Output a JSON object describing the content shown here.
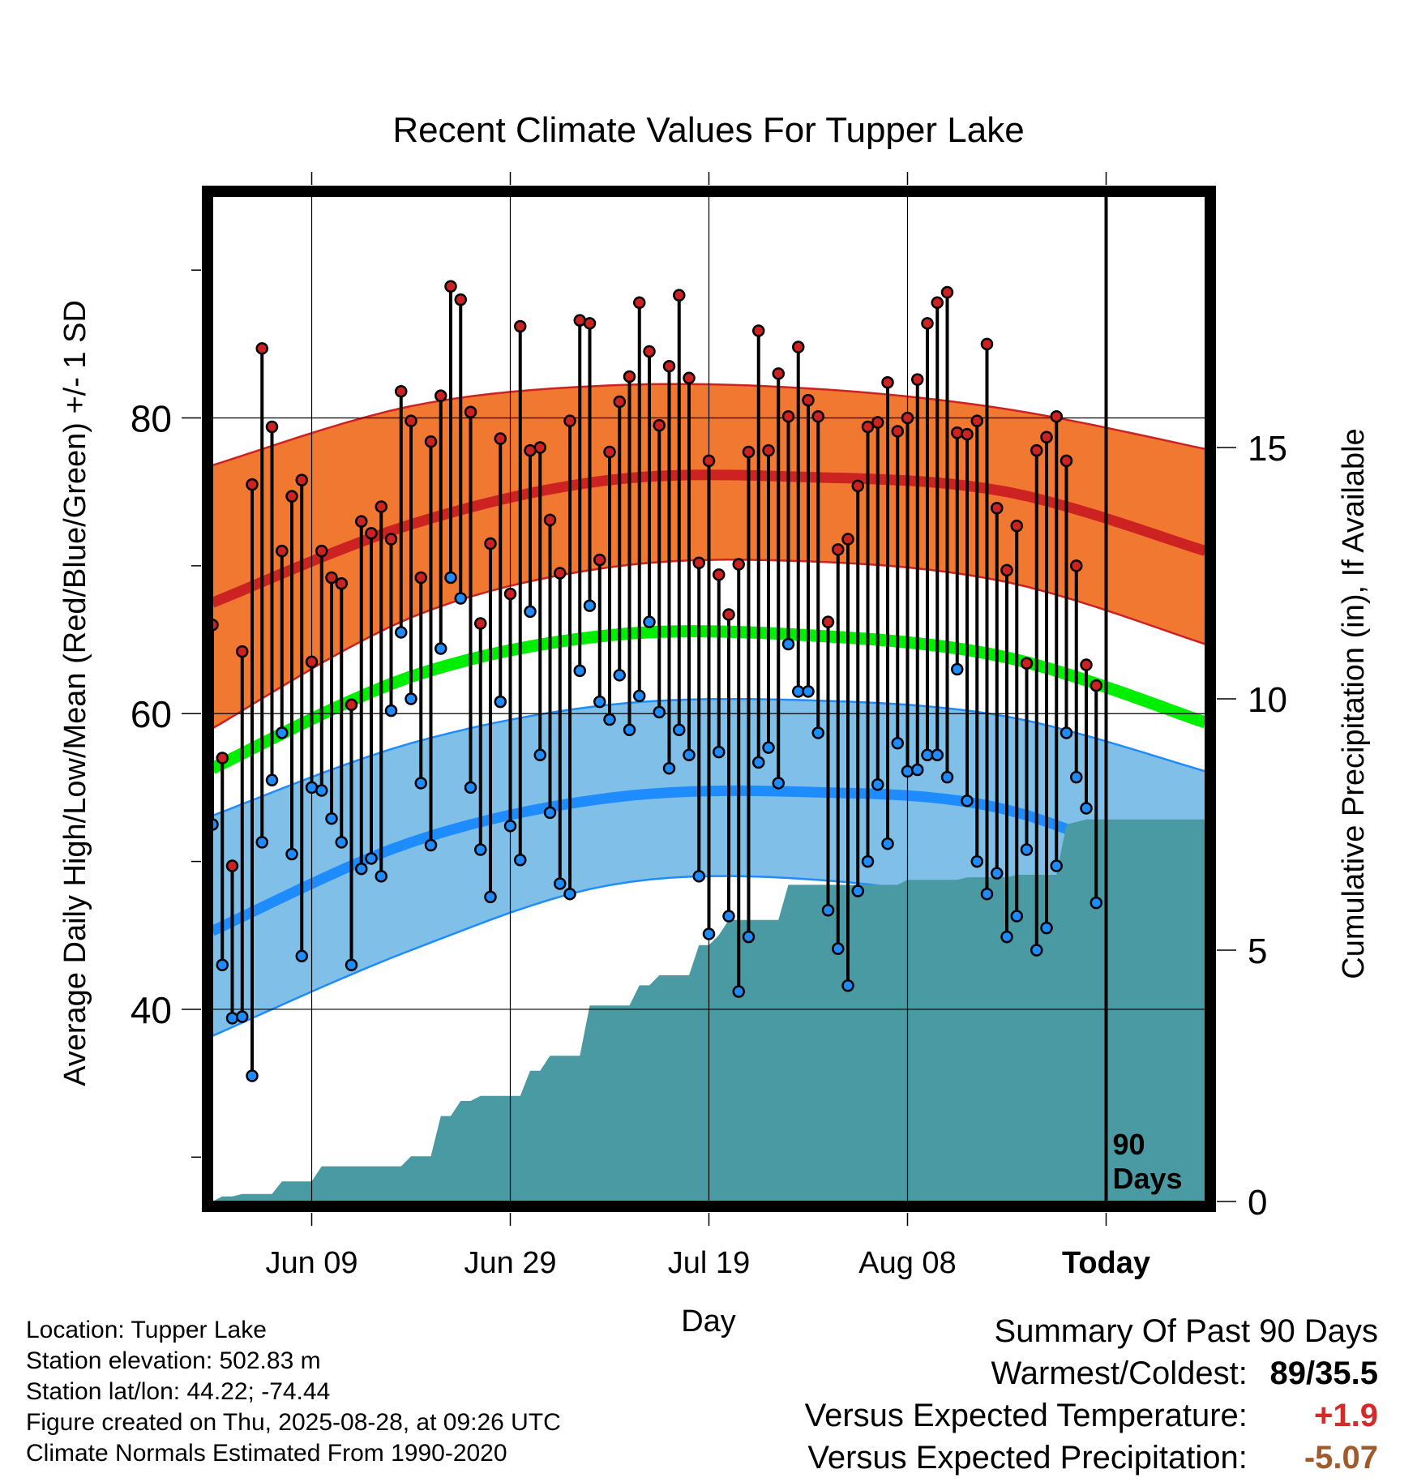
{
  "chart_data": {
    "type": "line",
    "title": "Recent Climate Values For Tupper Lake",
    "xlabel": "Day",
    "ylabel_left": "Average Daily High/Low/Mean (Red/Blue/Green) +/- 1 SD",
    "ylabel_right": "Cumulative Precipitation (in), If Available",
    "x_tick_labels": [
      "Jun 09",
      "Jun 29",
      "Jul 19",
      "Aug 08",
      "Today"
    ],
    "x_tick_days": [
      10,
      30,
      50,
      70,
      90
    ],
    "xlim": [
      0,
      100
    ],
    "ylim_left": [
      27,
      95
    ],
    "ylim_right": [
      0,
      20
    ],
    "y_ticks_left": [
      40,
      60,
      80
    ],
    "y_ticks_right": [
      0,
      5,
      10,
      15
    ],
    "grid": true,
    "today_line": {
      "day": 90,
      "label_lines": [
        "90",
        "Days"
      ]
    },
    "normals": {
      "high_mean": [
        67.5,
        72.8,
        75.8,
        76.0,
        75.0,
        71.0
      ],
      "high_upper": [
        76.8,
        80.8,
        82.2,
        82.0,
        80.6,
        77.9
      ],
      "high_lower": [
        59.0,
        66.5,
        69.9,
        70.3,
        68.9,
        64.7
      ],
      "mean": [
        56.3,
        62.5,
        65.3,
        65.3,
        63.8,
        59.4
      ],
      "low_mean": [
        45.3,
        51.3,
        54.3,
        54.7,
        53.5,
        48.2
      ],
      "low_upper": [
        53.1,
        58.0,
        60.6,
        60.9,
        59.8,
        56.1
      ],
      "low_lower": [
        38.2,
        44.0,
        48.4,
        48.8,
        46.7,
        41.4
      ],
      "days": [
        0,
        20,
        40,
        60,
        80,
        100
      ]
    },
    "series": [
      {
        "name": "High",
        "values": [
          66.0,
          57.0,
          49.7,
          64.2,
          75.5,
          84.7,
          79.4,
          71.0,
          74.7,
          75.8,
          63.5,
          71.0,
          69.2,
          68.8,
          60.6,
          73.0,
          72.2,
          74.0,
          71.8,
          81.8,
          79.8,
          69.2,
          78.4,
          81.5,
          88.9,
          88.0,
          80.4,
          66.1,
          71.5,
          78.6,
          68.1,
          86.2,
          77.8,
          78.0,
          73.1,
          69.5,
          79.8,
          86.6,
          86.4,
          70.4,
          77.7,
          81.1,
          82.8,
          87.8,
          84.5,
          79.5,
          83.5,
          88.3,
          82.7,
          70.2,
          77.1,
          69.4,
          66.7,
          70.1,
          77.7,
          85.9,
          77.8,
          83.0,
          80.1,
          84.8,
          81.2,
          80.1,
          66.2,
          71.1,
          71.8,
          75.4,
          79.4,
          79.7,
          82.4,
          79.1,
          80.0,
          82.6,
          86.4,
          87.8,
          88.5,
          79.0,
          78.9,
          79.8,
          85.0,
          73.9,
          69.7,
          72.7,
          63.4,
          77.8,
          78.7,
          80.1,
          77.1,
          70.0,
          63.3,
          61.9
        ]
      },
      {
        "name": "Low",
        "values": [
          52.5,
          43.0,
          39.4,
          39.5,
          35.5,
          51.3,
          55.5,
          58.7,
          50.5,
          43.6,
          55.0,
          54.8,
          52.9,
          51.3,
          43.0,
          49.5,
          50.2,
          49.0,
          60.2,
          65.5,
          61.0,
          55.3,
          51.1,
          64.4,
          69.2,
          67.8,
          55.0,
          50.8,
          47.6,
          60.8,
          52.4,
          50.1,
          66.9,
          57.2,
          53.3,
          48.5,
          47.8,
          62.9,
          67.3,
          60.8,
          59.6,
          62.6,
          58.9,
          61.2,
          66.2,
          60.1,
          56.3,
          58.9,
          57.2,
          49.0,
          45.1,
          57.4,
          46.3,
          41.2,
          44.9,
          56.7,
          57.7,
          55.3,
          64.7,
          61.5,
          61.5,
          58.7,
          46.7,
          44.1,
          41.6,
          48.0,
          50.0,
          55.2,
          51.2,
          58.0,
          56.1,
          56.2,
          57.2,
          57.2,
          55.7,
          63.0,
          54.1,
          50.0,
          47.8,
          49.2,
          44.9,
          46.3,
          50.8,
          44.0,
          45.5,
          49.7,
          58.7,
          55.7,
          53.6,
          47.2
        ]
      }
    ],
    "precip_cumulative": [
      [
        0,
        0.0
      ],
      [
        1,
        0.1
      ],
      [
        2,
        0.1
      ],
      [
        3,
        0.15
      ],
      [
        6,
        0.15
      ],
      [
        7,
        0.4
      ],
      [
        10,
        0.4
      ],
      [
        11,
        0.7
      ],
      [
        19,
        0.7
      ],
      [
        20,
        0.9
      ],
      [
        22,
        0.9
      ],
      [
        23,
        1.7
      ],
      [
        24,
        1.7
      ],
      [
        25,
        2.0
      ],
      [
        26,
        2.0
      ],
      [
        27,
        2.1
      ],
      [
        31,
        2.1
      ],
      [
        32,
        2.6
      ],
      [
        33,
        2.6
      ],
      [
        34,
        2.9
      ],
      [
        37,
        2.9
      ],
      [
        38,
        3.9
      ],
      [
        42,
        3.9
      ],
      [
        43,
        4.3
      ],
      [
        44,
        4.3
      ],
      [
        45,
        4.5
      ],
      [
        48,
        4.5
      ],
      [
        49,
        5.1
      ],
      [
        50,
        5.1
      ],
      [
        51,
        5.3
      ],
      [
        52,
        5.6
      ],
      [
        57,
        5.6
      ],
      [
        58,
        6.3
      ],
      [
        69,
        6.3
      ],
      [
        70,
        6.4
      ],
      [
        75,
        6.4
      ],
      [
        76,
        6.45
      ],
      [
        80,
        6.45
      ],
      [
        81,
        6.5
      ],
      [
        85,
        6.5
      ],
      [
        86,
        7.5
      ],
      [
        88,
        7.6
      ],
      [
        100,
        7.6
      ]
    ],
    "lines": {
      "high": "#cc2222",
      "high_band": "#f07830",
      "mean": "#00ee00",
      "low": "#1e8cff",
      "low_band": "#80c0e8",
      "precip": "#4a9aa3"
    }
  },
  "info": {
    "location": "Location: Tupper Lake",
    "elevation": "Station elevation: 502.83 m",
    "latlon": "Station lat/lon: 44.22; -74.44",
    "created": "Figure created on Thu, 2025-08-28, at 09:26 UTC",
    "normals": "Climate Normals Estimated From 1990-2020"
  },
  "summary": {
    "heading": "Summary Of Past 90 Days",
    "warm_label": "Warmest/Coldest:",
    "warm_value": "89/35.5",
    "temp_label": "Versus Expected Temperature:",
    "temp_value": "+1.9",
    "temp_color": "#d42a2a",
    "precip_label": "Versus Expected Precipitation:",
    "precip_value": "-5.07",
    "precip_color": "#a05a2c"
  }
}
